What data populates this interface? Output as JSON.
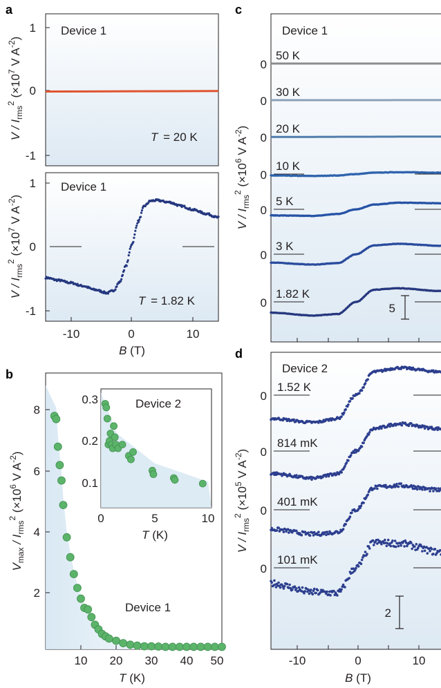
{
  "chart_data": [
    {
      "type": "line",
      "panel": "a",
      "annotation": "Device 1",
      "condition_label": "T = 20 K",
      "ylabel": "V / I_rms^2 (×10^7 V A^-2)",
      "yticks": [
        "1",
        "0",
        "-1"
      ],
      "ylim": [
        -1.1,
        1.1
      ],
      "xlim": [
        -14,
        14
      ],
      "series": [
        {
          "name": "T = 20 K",
          "x": [
            -14,
            -7,
            0,
            7,
            14
          ],
          "y": [
            0,
            0.002,
            0.004,
            0.006,
            0.008
          ],
          "color": "#e0532e"
        }
      ]
    },
    {
      "type": "scatter",
      "panel": "a",
      "annotation": "Device 1",
      "condition_label": "T = 1.82 K",
      "ylabel": "V / I_rms^2 (×10^7 V A^-2)",
      "xlabel": "B (T)",
      "yticks": [
        "1",
        "0",
        "-1"
      ],
      "xticks": [
        "-10",
        "0",
        "10"
      ],
      "ylim": [
        -1.1,
        1.1
      ],
      "xlim": [
        -14,
        14
      ],
      "series": [
        {
          "name": "T = 1.82 K",
          "x": [
            -14,
            -12,
            -10,
            -8,
            -6,
            -4,
            -3,
            -2,
            -1,
            0,
            1,
            2,
            3,
            4,
            6,
            8,
            10,
            12,
            14
          ],
          "y": [
            -0.48,
            -0.52,
            -0.56,
            -0.61,
            -0.67,
            -0.72,
            -0.68,
            -0.55,
            -0.3,
            0.05,
            0.4,
            0.64,
            0.72,
            0.73,
            0.7,
            0.64,
            0.58,
            0.52,
            0.46
          ],
          "color": "#24377f"
        }
      ]
    },
    {
      "type": "scatter",
      "panel": "b",
      "annotation": "Device 1",
      "xlabel": "T (K)",
      "ylabel": "V_max / I_rms^2 (×10^6 V A^-2)",
      "xticks": [
        "10",
        "20",
        "30",
        "40",
        "50"
      ],
      "yticks": [
        "2",
        "4",
        "6",
        "8"
      ],
      "xlim": [
        0,
        50
      ],
      "ylim": [
        0,
        9
      ],
      "series": [
        {
          "name": "Device 1",
          "x": [
            2.5,
            3,
            3.5,
            4,
            4.5,
            5,
            6,
            7,
            8,
            9,
            10,
            11,
            12,
            13,
            14,
            15,
            16,
            17,
            18,
            20,
            22,
            24,
            26,
            28,
            30,
            32,
            34,
            36,
            38,
            40,
            42,
            44,
            46,
            48,
            50
          ],
          "y": [
            7.6,
            7.5,
            6.6,
            6.0,
            5.5,
            4.7,
            3.65,
            3.0,
            2.45,
            2.0,
            1.65,
            1.35,
            1.3,
            1.05,
            0.8,
            0.65,
            0.5,
            0.42,
            0.35,
            0.28,
            0.2,
            0.15,
            0.12,
            0.1,
            0.1,
            0.09,
            0.08,
            0.08,
            0.08,
            0.08,
            0.08,
            0.08,
            0.08,
            0.08,
            0.08
          ],
          "color": "#5cb46a"
        }
      ]
    },
    {
      "type": "scatter",
      "panel": "b-inset",
      "annotation": "Device 2",
      "xlabel": "T (K)",
      "xticks": [
        "0",
        "5",
        "10"
      ],
      "yticks": [
        "0.1",
        "0.2",
        "0.3"
      ],
      "xlim": [
        0,
        10
      ],
      "ylim": [
        0,
        0.32
      ],
      "series": [
        {
          "name": "Device 2",
          "x": [
            0.4,
            0.5,
            0.6,
            0.7,
            0.8,
            0.9,
            1.0,
            1.1,
            1.2,
            1.3,
            1.4,
            1.6,
            2.0,
            2.6,
            2.8,
            3.0,
            4.8,
            4.9,
            6.8,
            6.9,
            9.5
          ],
          "y": [
            0.28,
            0.27,
            0.24,
            0.17,
            0.18,
            0.2,
            0.17,
            0.16,
            0.22,
            0.19,
            0.17,
            0.16,
            0.17,
            0.14,
            0.13,
            0.15,
            0.1,
            0.09,
            0.08,
            0.075,
            0.065
          ],
          "color": "#5cb46a"
        }
      ]
    },
    {
      "type": "scatter",
      "panel": "c",
      "annotation": "Device 1",
      "ylabel": "V / I_rms^2 (×10^6 V A^-2)",
      "scale_bar": "5",
      "xlim": [
        -14,
        14
      ],
      "series": [
        {
          "name": "50 K",
          "x": [
            -14,
            0,
            14
          ],
          "y": [
            0,
            0,
            0
          ],
          "color": "#8c8c8c"
        },
        {
          "name": "30 K",
          "x": [
            -14,
            0,
            14
          ],
          "y": [
            0,
            0,
            0.02
          ],
          "color": "#8aa1b8"
        },
        {
          "name": "20 K",
          "x": [
            -14,
            0,
            14
          ],
          "y": [
            -0.05,
            0,
            0.05
          ],
          "color": "#4f7cab"
        },
        {
          "name": "10 K",
          "x": [
            -14,
            -7,
            -3,
            0,
            3,
            7,
            14
          ],
          "y": [
            -0.3,
            -0.4,
            -0.3,
            0,
            0.3,
            0.4,
            0.3
          ],
          "color": "#2f63ad"
        },
        {
          "name": "5 K",
          "x": [
            -14,
            -7,
            -3,
            0,
            3,
            7,
            14
          ],
          "y": [
            -1.3,
            -1.4,
            -1.0,
            0,
            1.0,
            1.4,
            1.3
          ],
          "color": "#2753a5"
        },
        {
          "name": "3 K",
          "x": [
            -14,
            -7,
            -3,
            0,
            3,
            7,
            14
          ],
          "y": [
            -1.8,
            -2.2,
            -1.9,
            0,
            1.9,
            2.2,
            1.8
          ],
          "color": "#2a4c9e"
        },
        {
          "name": "1.82 K",
          "x": [
            -14,
            -7,
            -3,
            0,
            3,
            7,
            14
          ],
          "y": [
            -2.3,
            -2.9,
            -2.6,
            0,
            2.6,
            2.9,
            2.3
          ],
          "color": "#27387f"
        }
      ]
    },
    {
      "type": "scatter",
      "panel": "d",
      "annotation": "Device 2",
      "xlabel": "B (T)",
      "xticks": [
        "-10",
        "0",
        "10"
      ],
      "ylabel": "V / I_rms^2 (×10^5 V A^-2)",
      "scale_bar": "2",
      "xlim": [
        -14,
        14
      ],
      "series": [
        {
          "name": "1.52 K",
          "x": [
            -14,
            -7,
            -3,
            0,
            3,
            7,
            14
          ],
          "y": [
            -2.4,
            -2.8,
            -2.4,
            0,
            2.4,
            2.8,
            2.4
          ],
          "color": "#2c3e8e"
        },
        {
          "name": "814 mK",
          "x": [
            -14,
            -7,
            -3,
            0,
            3,
            7,
            14
          ],
          "y": [
            -2.3,
            -2.8,
            -2.3,
            0,
            2.3,
            2.8,
            2.3
          ],
          "color": "#2c3e8e"
        },
        {
          "name": "401 mK",
          "x": [
            -14,
            -7,
            -3,
            0,
            3,
            7,
            14
          ],
          "y": [
            -2.0,
            -2.5,
            -2.3,
            0,
            2.3,
            2.5,
            2.0
          ],
          "color": "#2c3e8e"
        },
        {
          "name": "101 mK",
          "x": [
            -14,
            -7,
            -3,
            0,
            3,
            7,
            14
          ],
          "y": [
            -1.6,
            -2.5,
            -2.6,
            0,
            2.6,
            2.5,
            1.6
          ],
          "color": "#2c3e8e"
        }
      ]
    }
  ],
  "labels": {
    "panel_a": "a",
    "panel_b": "b",
    "panel_c": "c",
    "panel_d": "d",
    "device1": "Device 1",
    "device2": "Device 2",
    "t20": "T = 20 K",
    "t182": "T = 1.82 K",
    "ylabel_a_main": "V / I",
    "ylabel_a_sub": "rms",
    "ylabel_a_sup": "2",
    "ylabel_a_unit": " (×10",
    "ylabel_a_exp": "7",
    "ylabel_a_unit2": " V A",
    "ylabel_a_exp2": "-2",
    "ylabel_a_close": ")",
    "ylabel_b_main": "V",
    "ylabel_b_sub1": "max",
    "ylabel_b_mid": " / I",
    "ylabel_b_sub2": "rms",
    "ylabel_b_sup": "2",
    "ylabel_b_unit": " (×10",
    "ylabel_b_exp": "6",
    "ylabel_b_unit2": " V A",
    "ylabel_b_exp2": "-2",
    "ylabel_b_close": ")",
    "ylabel_c_exp": "6",
    "ylabel_d_exp": "5",
    "xlabel_B_it": "B",
    "xlabel_B_unit": " (T)",
    "xlabel_T_it": "T",
    "xlabel_T_unit": " (K)",
    "c_series": [
      "50 K",
      "30 K",
      "20 K",
      "10 K",
      "5 K",
      "3 K",
      "1.82 K"
    ],
    "d_series": [
      "1.52 K",
      "814 mK",
      "401 mK",
      "101 mK"
    ],
    "zero": "0",
    "scale_c": "5",
    "scale_d": "2"
  }
}
